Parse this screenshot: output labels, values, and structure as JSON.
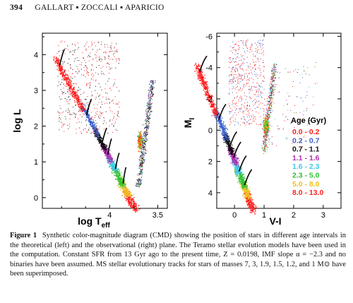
{
  "header": {
    "page_number": "394",
    "authors": "GALLART ▪ ZOCCALI ▪ APARICIO"
  },
  "chart_data": [
    {
      "type": "scatter",
      "panel": "left",
      "title": "",
      "xlabel": "log T",
      "xlabel_sub": "eff",
      "ylabel": "log L",
      "xlim": [
        4.7,
        3.4
      ],
      "ylim": [
        -0.3,
        4.6
      ],
      "x_ticks": [
        "4",
        "3.5"
      ],
      "y_ticks": [
        "0",
        "1",
        "2",
        "3",
        "4"
      ],
      "x_reversed": true
    },
    {
      "type": "scatter",
      "panel": "right",
      "title": "",
      "xlabel": "V-I",
      "ylabel": "M",
      "ylabel_sub": "I",
      "xlim": [
        -0.6,
        3.6
      ],
      "ylim": [
        5,
        -6.2
      ],
      "x_ticks": [
        "0",
        "1",
        "2",
        "3"
      ],
      "y_ticks": [
        "-6",
        "-4",
        "-2",
        "0",
        "2",
        "4"
      ],
      "y_reversed": true,
      "legend_title": "Age (Gyr)",
      "legend_position": "right",
      "series": [
        {
          "name": "0.0 - 0.2",
          "color": "#ff1a1a"
        },
        {
          "name": "0.2 - 0.7",
          "color": "#3a5fcd"
        },
        {
          "name": "0.7 - 1.1",
          "color": "#111111"
        },
        {
          "name": "1.1 - 1.6",
          "color": "#b030b0"
        },
        {
          "name": "1.6 - 2.3",
          "color": "#40c8e8"
        },
        {
          "name": "2.3 - 5.0",
          "color": "#30c030"
        },
        {
          "name": "5.0 - 8.0",
          "color": "#f0c020"
        },
        {
          "name": "8.0 - 13.0",
          "color": "#ff2020"
        }
      ]
    }
  ],
  "caption": {
    "label": "Figure 1",
    "text": "Synthetic color-magnitude diagram (CMD) showing the position of stars in different age intervals in the theoretical (left) and the observational (right) plane. The Teramo stellar evolution models have been used in the computation. Constant SFR from 13 Gyr ago to the present time, Z = 0.0198, IMF slope α = −2.3 and no binaries have been assumed. MS stellar evolutionary tracks for stars of masses 7, 3, 1.9, 1.5, 1.2, and 1 M⊙ have been superimposed."
  }
}
